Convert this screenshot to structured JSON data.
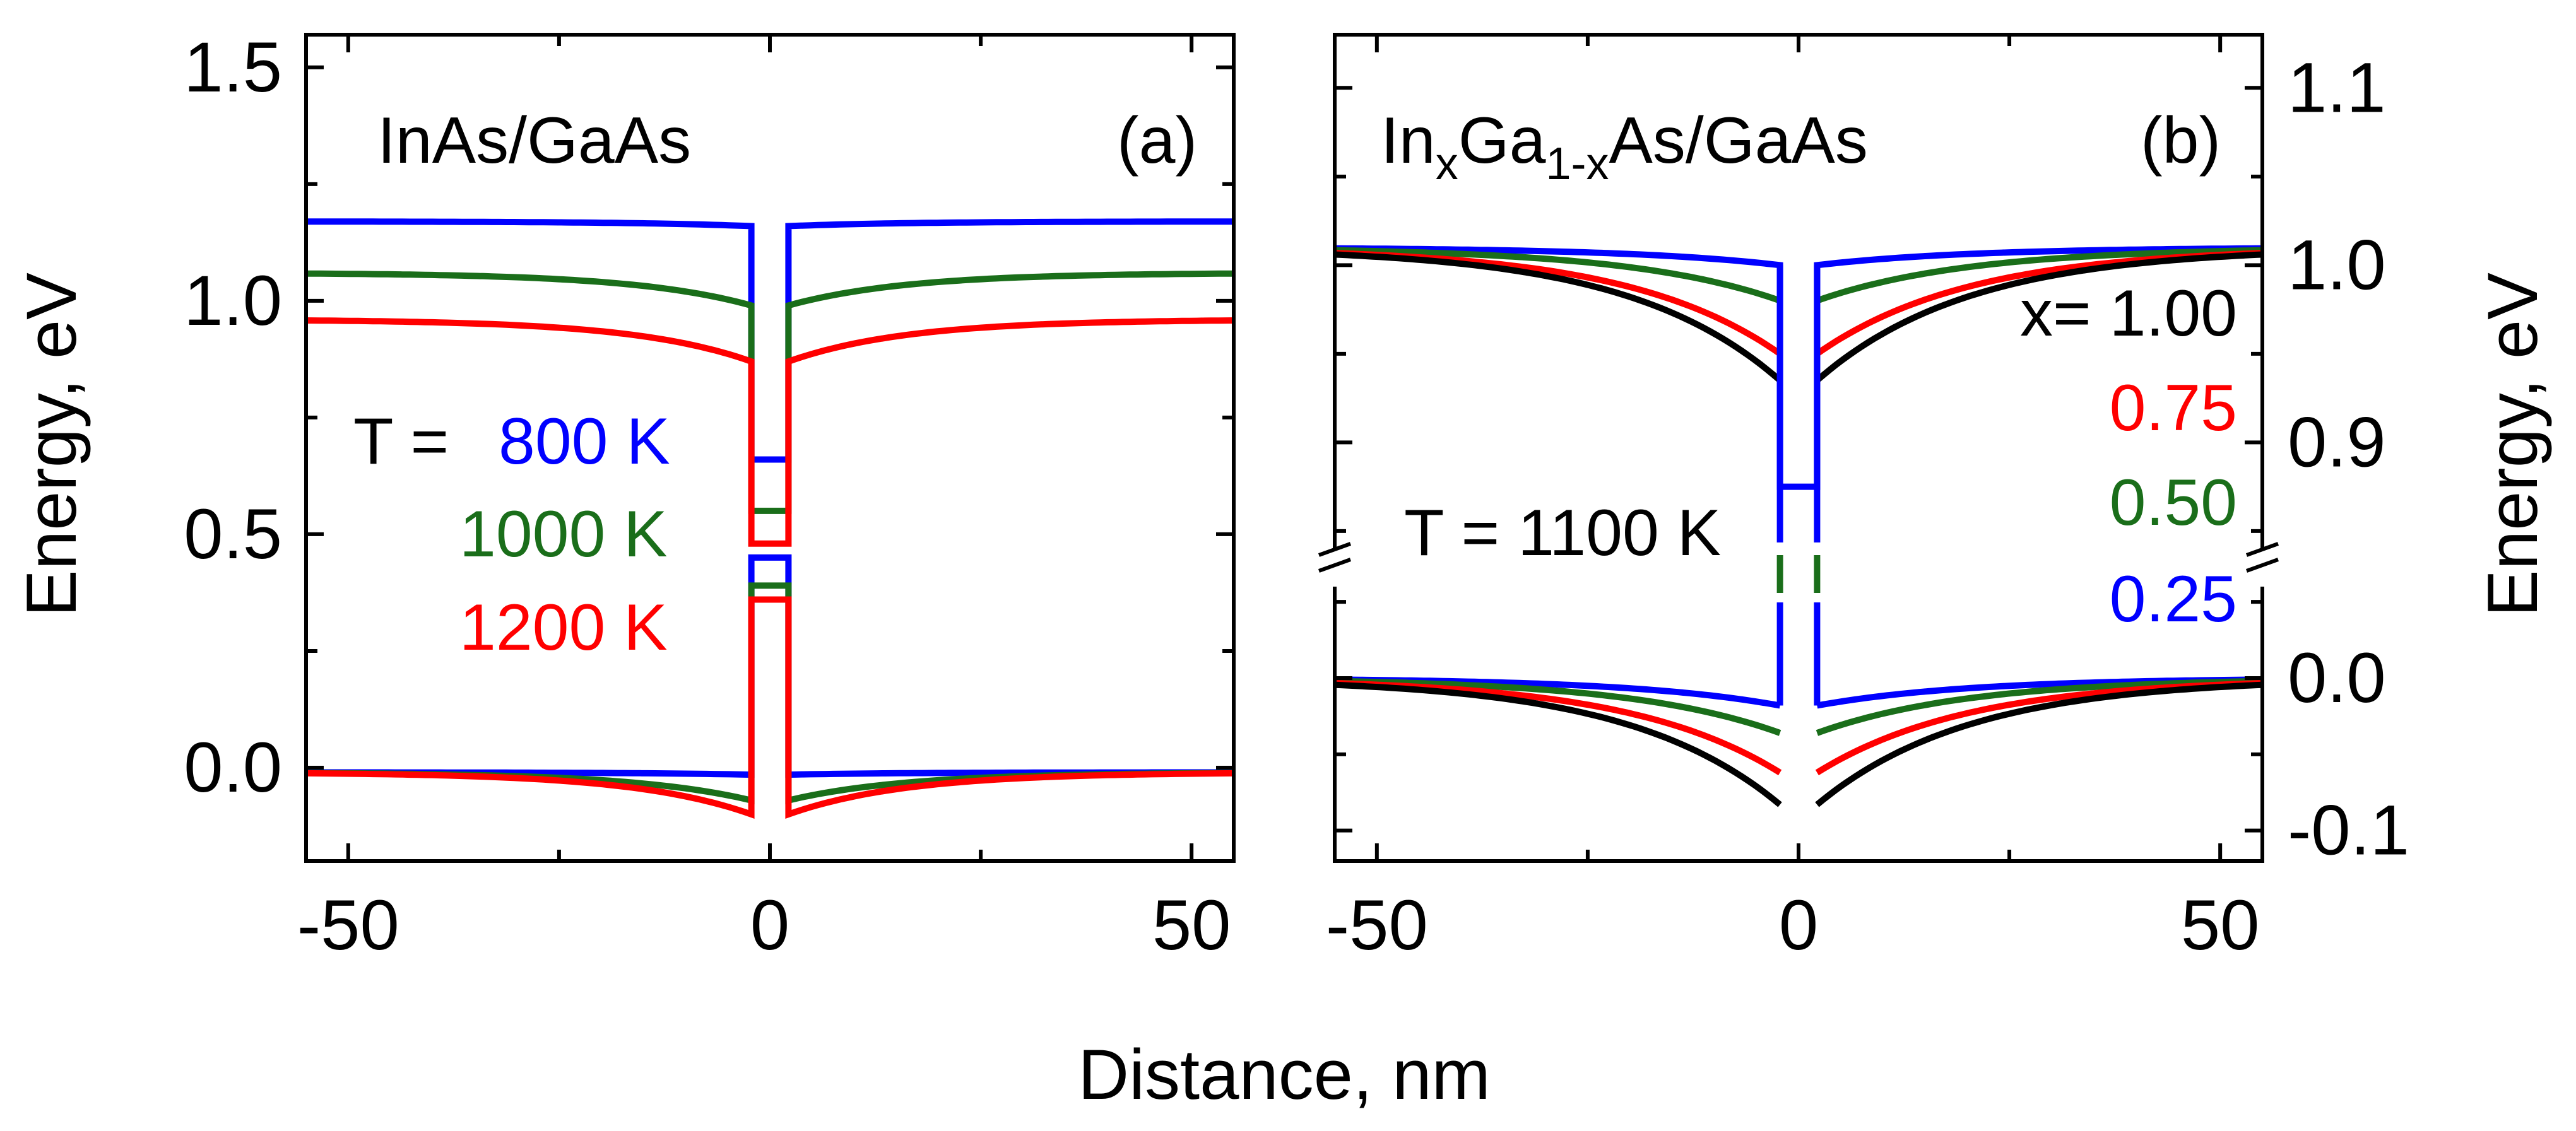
{
  "chart_data": {
    "type": "line",
    "xlabel": "Distance, nm",
    "colors": {
      "blue": "#0000ff",
      "green": "#1a6e1a",
      "red": "#ff0000",
      "black": "#000000"
    },
    "panels": [
      {
        "id": "a",
        "panel_label": "(a)",
        "title": "InAs/GaAs",
        "ylabel": "Energy, eV",
        "xlim": [
          -55,
          55
        ],
        "ylim": [
          -0.2,
          1.57
        ],
        "xticks": [
          "-50",
          "0",
          "50"
        ],
        "yticks": [
          "0.0",
          "0.5",
          "1.0",
          "1.5"
        ],
        "xtick_values": [
          -50,
          0,
          50
        ],
        "ytick_values": [
          0.0,
          0.5,
          1.0,
          1.5
        ],
        "legend_prefix": "T =",
        "series": [
          {
            "name": "800 K",
            "color": "blue",
            "barrier_cb": 1.17,
            "edge_cb": 1.16,
            "barrier_vb": -0.01,
            "edge_vb": -0.015,
            "level_e": 0.66,
            "level_h": 0.45
          },
          {
            "name": "1000 K",
            "color": "green",
            "barrier_cb": 1.06,
            "edge_cb": 0.99,
            "barrier_vb": -0.01,
            "edge_vb": -0.07,
            "level_e": 0.55,
            "level_h": 0.39
          },
          {
            "name": "1200 K",
            "color": "red",
            "barrier_cb": 0.96,
            "edge_cb": 0.87,
            "barrier_vb": -0.01,
            "edge_vb": -0.1,
            "level_e": 0.48,
            "level_h": 0.36
          }
        ]
      },
      {
        "id": "b",
        "panel_label": "(b)",
        "title": "In",
        "title_sub1": "x",
        "title_mid": "Ga",
        "title_sub2": "1-x",
        "title_end": "As/GaAs",
        "ylabel": "Energy, eV",
        "xlim": [
          -55,
          55
        ],
        "xticks": [
          "-50",
          "0",
          "50"
        ],
        "xtick_values": [
          -50,
          0,
          50
        ],
        "y_broken": true,
        "ylim_upper": [
          0.84,
          1.13
        ],
        "ylim_lower": [
          -0.12,
          0.06
        ],
        "yticks": [
          "1.1",
          "1.0",
          "0.9",
          "0.0",
          "-0.1"
        ],
        "temperature_label": "T = 1100 K",
        "legend_prefix": "x= ",
        "series": [
          {
            "name": "1.00",
            "color": "black",
            "barrier_cb": 1.01,
            "edge_cb": 0.935,
            "barrier_vb": 0.0,
            "edge_vb": -0.083
          },
          {
            "name": "0.75",
            "color": "red",
            "barrier_cb": 1.01,
            "edge_cb": 0.95,
            "barrier_vb": 0.0,
            "edge_vb": -0.062
          },
          {
            "name": "0.50",
            "color": "green",
            "barrier_cb": 1.01,
            "edge_cb": 0.98,
            "barrier_vb": 0.0,
            "edge_vb": -0.036
          },
          {
            "name": "0.25",
            "color": "blue",
            "barrier_cb": 1.01,
            "edge_cb": 1.0,
            "barrier_vb": 0.0,
            "edge_vb": -0.018
          }
        ],
        "well_cb": 0.875
      }
    ]
  }
}
